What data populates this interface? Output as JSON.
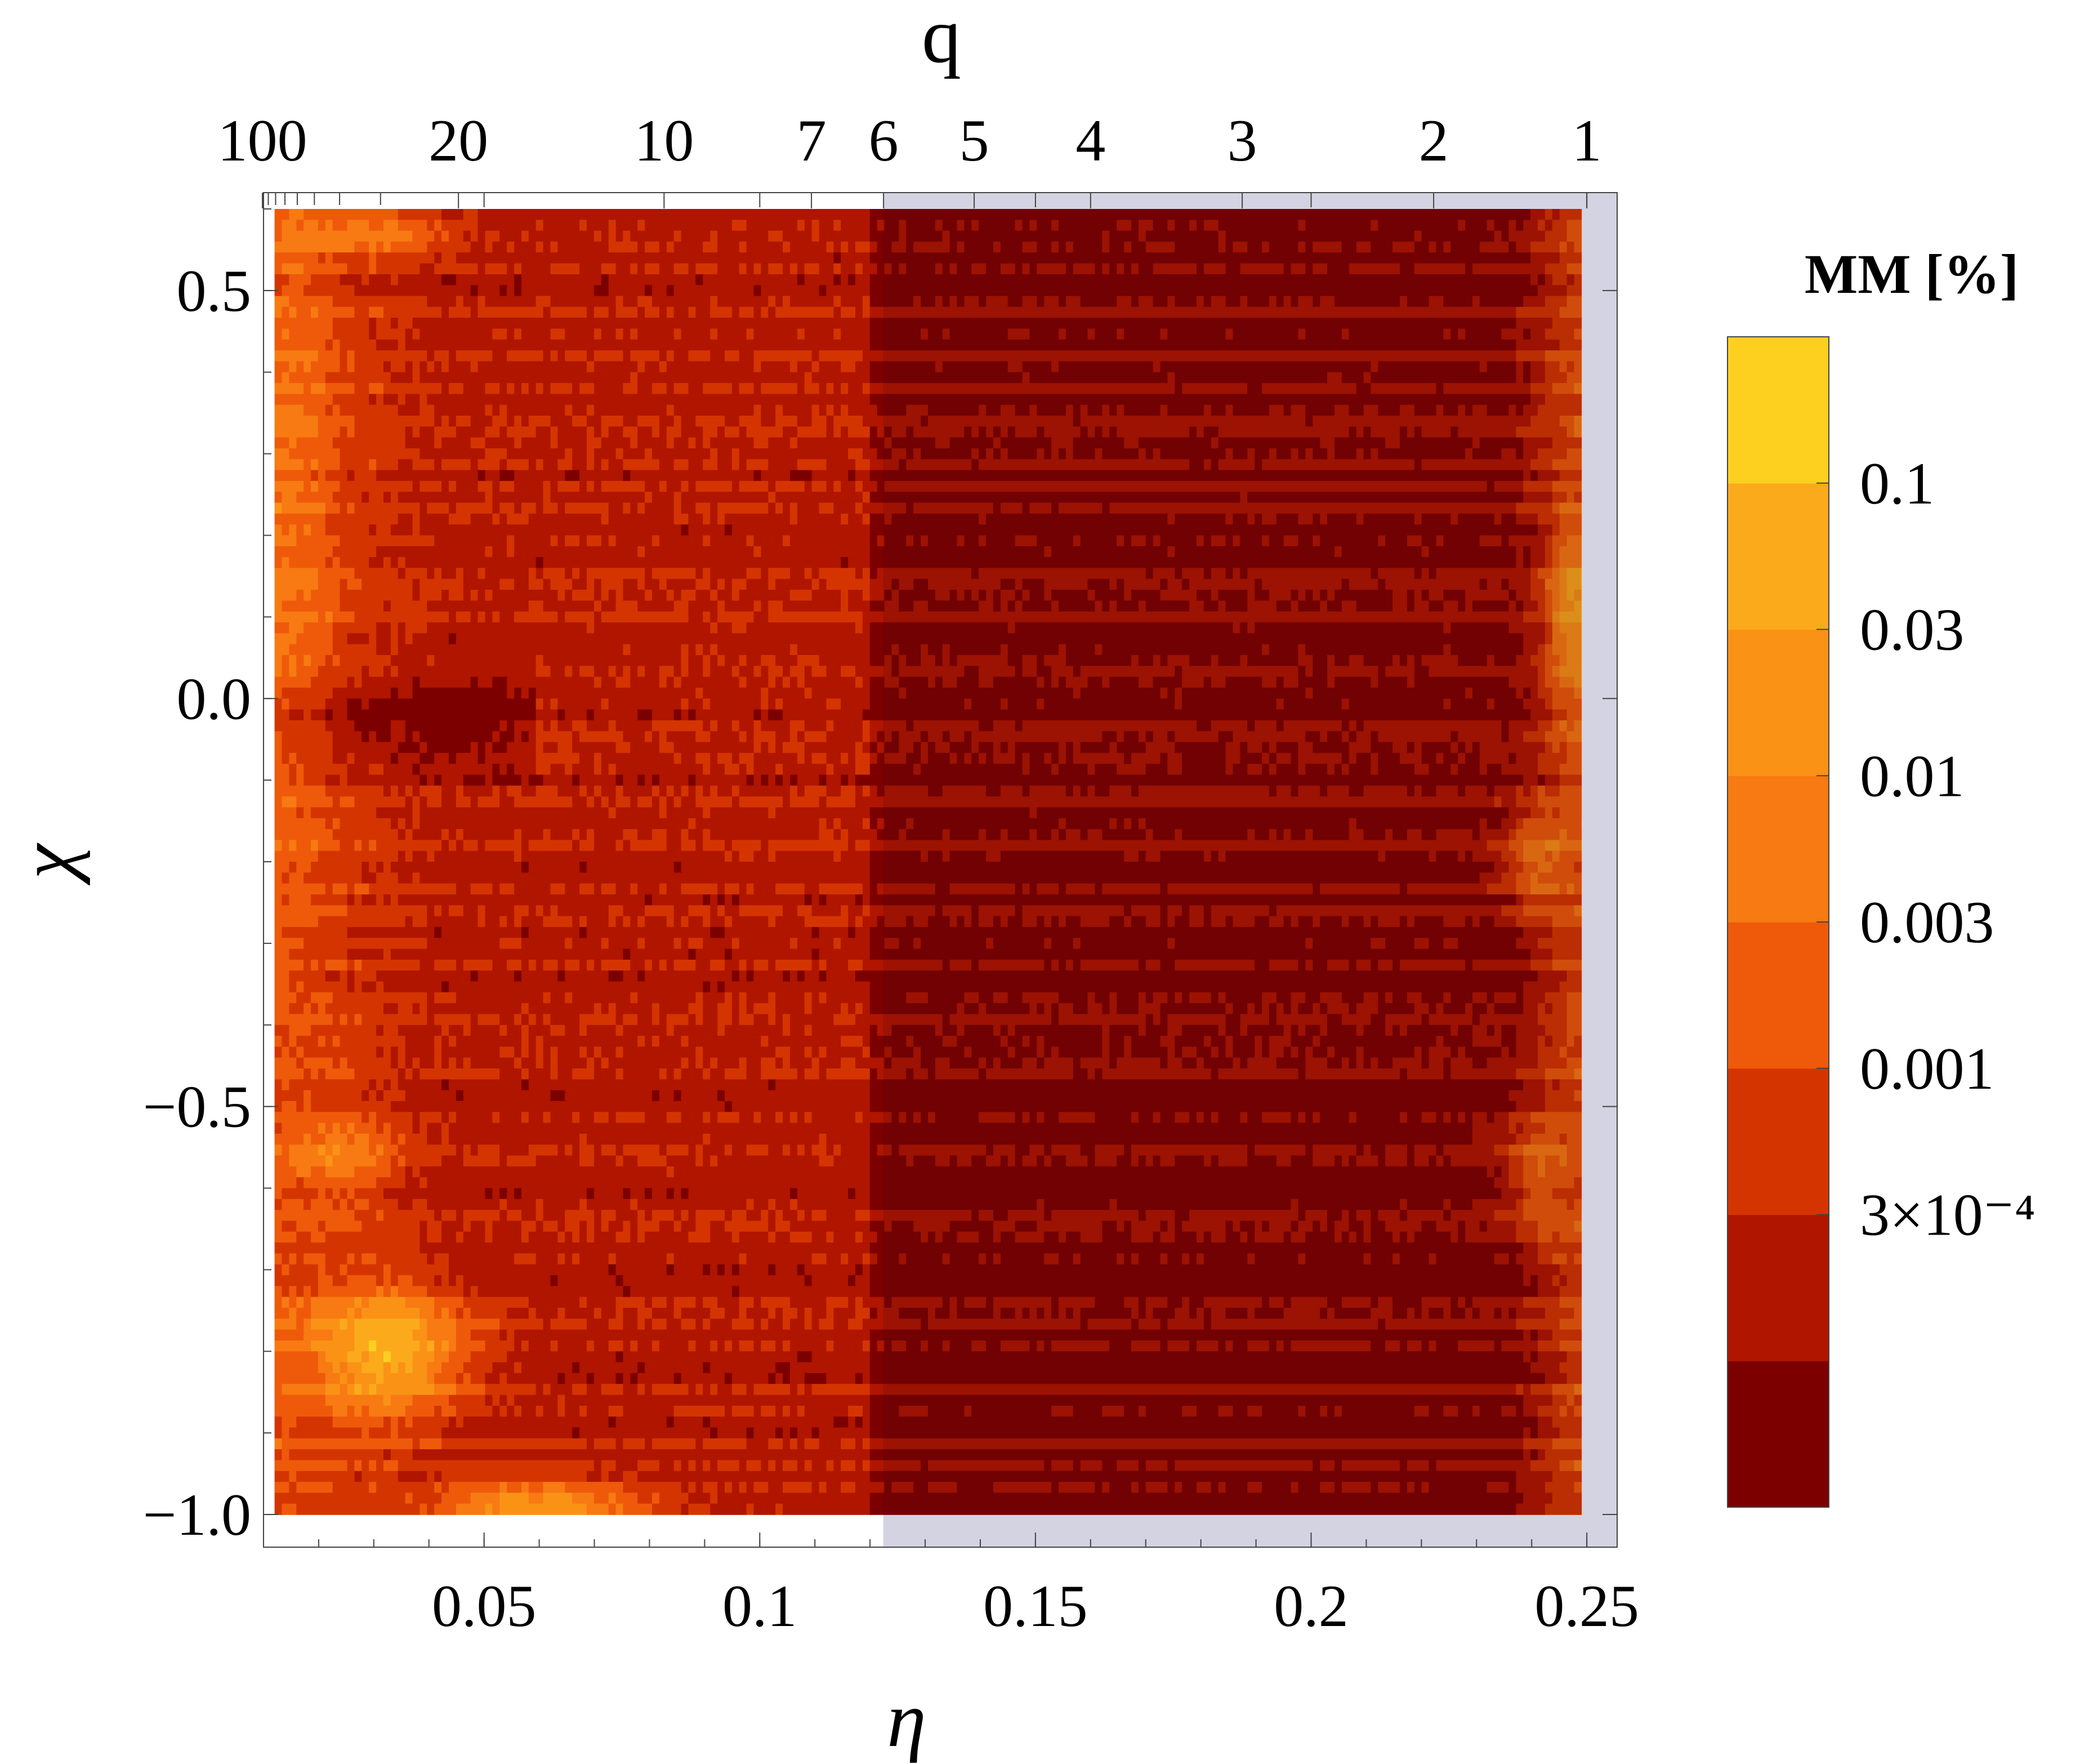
{
  "chart_data": {
    "type": "heatmap",
    "title": "",
    "xlabel": "η",
    "ylabel": "χ",
    "top_axis_label": "q",
    "xlim": [
      0.01,
      0.2555
    ],
    "ylim": [
      -1.04,
      0.62
    ],
    "x_ticks": [
      0.05,
      0.1,
      0.15,
      0.2,
      0.25
    ],
    "x_tick_labels": [
      "0.05",
      "0.1",
      "0.15",
      "0.2",
      "0.25"
    ],
    "y_ticks": [
      0.5,
      0.0,
      -0.5,
      -1.0
    ],
    "y_tick_labels": [
      "0.5",
      "0.0",
      "−0.5",
      "−1.0"
    ],
    "q_ticks": [
      100,
      20,
      10,
      7,
      6,
      5,
      4,
      3,
      2,
      1
    ],
    "q_tick_labels": [
      "100",
      "20",
      "10",
      "7",
      "6",
      "5",
      "4",
      "3",
      "2",
      "1"
    ],
    "shaded_region": {
      "eta_min": 0.1224,
      "eta_max": 0.25,
      "color": "#d4d3e2",
      "q_range": [
        1,
        6
      ]
    },
    "colorbar": {
      "title": "MM [%]",
      "scale": "log",
      "tick_labels": [
        "0.1",
        "0.03",
        "0.01",
        "0.003",
        "0.001",
        "3×10⁻⁴"
      ],
      "tick_values": [
        0.1,
        0.03,
        0.01,
        0.003,
        0.001,
        0.0003
      ],
      "bands": [
        "#7c0000",
        "#b01500",
        "#d43500",
        "#ee5a0a",
        "#f87a12",
        "#fa9216",
        "#fbaa1c",
        "#fdd020"
      ]
    },
    "shaded_overlay_colors": [
      "#5f0003",
      "#8c2b1a",
      "#a43c1e"
    ],
    "contour_line_color": "#6e5a2a",
    "grid": false
  }
}
